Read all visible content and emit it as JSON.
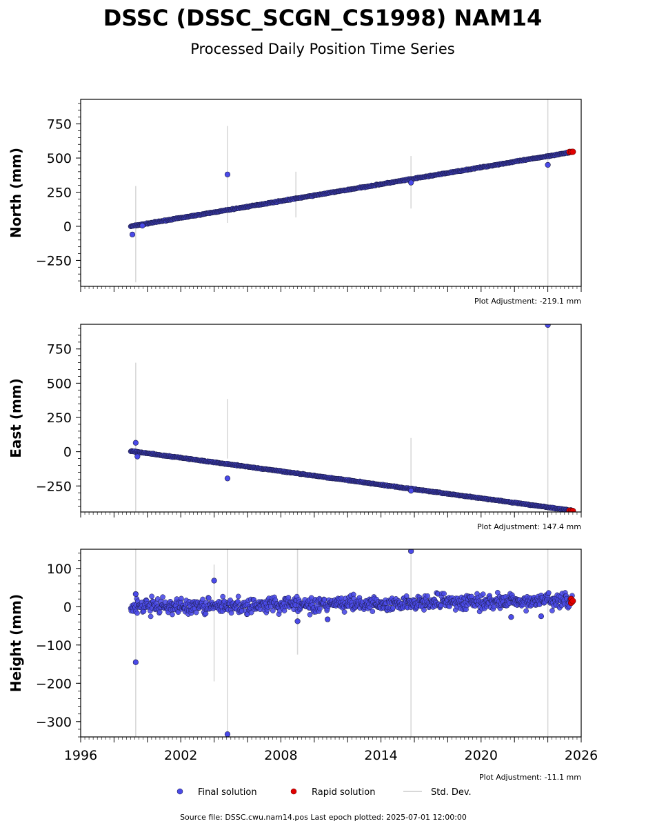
{
  "title": "DSSC (DSSC_SCGN_CS1998) NAM14",
  "subtitle": "Processed Daily Position Time Series",
  "colors": {
    "final": "#4a4ae8",
    "final_edge": "#1a1a40",
    "rapid": "#e00000",
    "std_dev": "#d8d8d8"
  },
  "legend": {
    "placement": "bottom-center",
    "items": [
      {
        "key": "final",
        "label": "Final solution"
      },
      {
        "key": "rapid",
        "label": "Rapid solution"
      },
      {
        "key": "std_dev",
        "label": "Std. Dev."
      }
    ]
  },
  "footer": {
    "source_label": "Source file:",
    "source_file": "DSSC.cwu.nam14.pos",
    "last_epoch_label": "Last epoch plotted:",
    "last_epoch": "2025-07-01 12:00:00"
  },
  "chart_data": [
    {
      "type": "scatter",
      "ylabel": "North (mm)",
      "xlim": [
        1996,
        2026
      ],
      "ylim": [
        -440,
        930
      ],
      "yticks": [
        -250,
        0,
        250,
        500,
        750
      ],
      "ytick_labels": [
        "−250",
        "0",
        "250",
        "500",
        "750"
      ],
      "adjustment_text": "Plot Adjustment: -219.1 mm",
      "trend": {
        "x_start": 1999.0,
        "x_end": 2025.5,
        "y_start": 0,
        "y_end": 545
      },
      "series": [
        {
          "name": "Final solution",
          "points": [
            [
              1999.1,
              -60
            ],
            [
              1999.7,
              5
            ],
            [
              2004.8,
              380
            ],
            [
              2015.8,
              320
            ],
            [
              2024.0,
              450
            ]
          ]
        },
        {
          "name": "Rapid solution",
          "points": [
            [
              2025.3,
              545
            ],
            [
              2025.4,
              545
            ],
            [
              2025.5,
              546
            ]
          ]
        }
      ],
      "std_dev": [
        [
          1999.3,
          -410,
          295
        ],
        [
          2004.8,
          25,
          735
        ],
        [
          2008.9,
          65,
          400
        ],
        [
          2015.8,
          130,
          515
        ],
        [
          2024.0,
          -440,
          930
        ]
      ]
    },
    {
      "type": "scatter",
      "ylabel": "East (mm)",
      "xlim": [
        1996,
        2026
      ],
      "ylim": [
        -440,
        930
      ],
      "yticks": [
        -250,
        0,
        250,
        500,
        750
      ],
      "ytick_labels": [
        "−250",
        "0",
        "250",
        "500",
        "750"
      ],
      "adjustment_text": "Plot Adjustment: 147.4 mm",
      "trend": {
        "x_start": 1999.0,
        "x_end": 2025.5,
        "y_start": 5,
        "y_end": -430
      },
      "series": [
        {
          "name": "Final solution",
          "points": [
            [
              1999.3,
              65
            ],
            [
              1999.4,
              -35
            ],
            [
              2004.8,
              -195
            ],
            [
              2015.8,
              -285
            ],
            [
              2024.0,
              925
            ]
          ]
        },
        {
          "name": "Rapid solution",
          "points": [
            [
              2025.3,
              -430
            ],
            [
              2025.4,
              -432
            ],
            [
              2025.5,
              -433
            ]
          ]
        }
      ],
      "std_dev": [
        [
          1999.3,
          -440,
          650
        ],
        [
          2004.8,
          -50,
          385
        ],
        [
          2015.8,
          -300,
          100
        ],
        [
          2024.0,
          -440,
          930
        ]
      ]
    },
    {
      "type": "scatter",
      "ylabel": "Height (mm)",
      "xlim": [
        1996,
        2026
      ],
      "ylim": [
        -340,
        150
      ],
      "yticks": [
        -300,
        -200,
        -100,
        0,
        100
      ],
      "ytick_labels": [
        "−300",
        "−200",
        "−100",
        "0",
        "100"
      ],
      "xticks": [
        1996,
        2002,
        2008,
        2014,
        2020,
        2026
      ],
      "adjustment_text": "Plot Adjustment: -11.1 mm",
      "trend": {
        "x_start": 1999.0,
        "x_end": 2025.5,
        "y_start": 0,
        "y_end": 15
      },
      "scatter_amplitude": 14,
      "series": [
        {
          "name": "Final solution",
          "points": [
            [
              1999.3,
              33
            ],
            [
              1999.3,
              -145
            ],
            [
              2004.0,
              68
            ],
            [
              2004.8,
              -333
            ],
            [
              2009.0,
              -38
            ],
            [
              2010.8,
              -33
            ],
            [
              2015.8,
              145
            ],
            [
              2021.8,
              -27
            ],
            [
              2023.6,
              -25
            ]
          ]
        },
        {
          "name": "Rapid solution",
          "points": [
            [
              2025.4,
              20
            ],
            [
              2025.4,
              10
            ],
            [
              2025.5,
              15
            ]
          ]
        }
      ],
      "std_dev": [
        [
          1999.3,
          -340,
          150
        ],
        [
          2004.0,
          -195,
          110
        ],
        [
          2004.8,
          -340,
          150
        ],
        [
          2009.0,
          -125,
          150
        ],
        [
          2015.8,
          -340,
          150
        ],
        [
          2024.0,
          -340,
          150
        ]
      ]
    }
  ]
}
